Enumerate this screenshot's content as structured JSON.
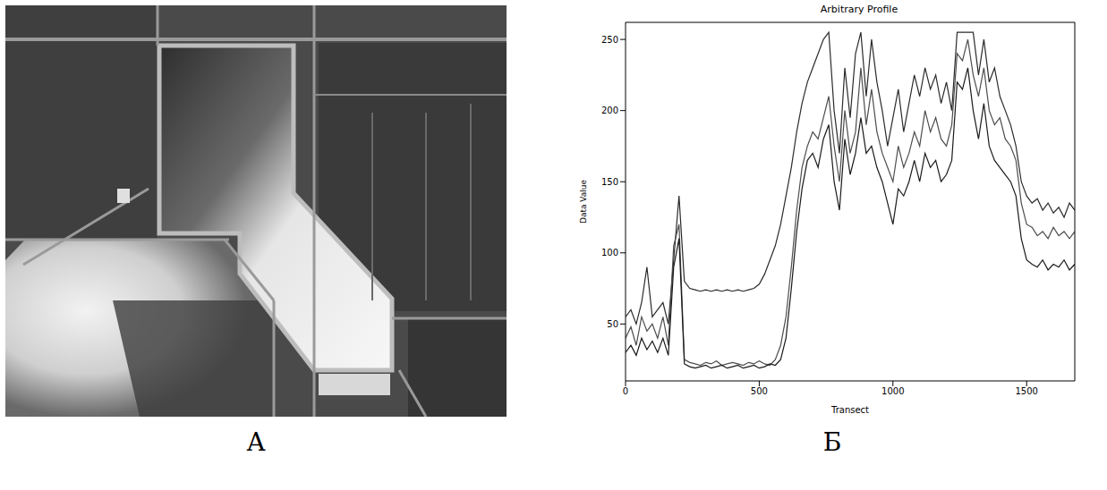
{
  "panel_labels": [
    "А",
    "Б"
  ],
  "chart_data": {
    "type": "line",
    "title": "Arbitrary Profile",
    "x_label": "Transect",
    "y_label": "Data Value",
    "x": [
      0,
      20,
      40,
      60,
      80,
      100,
      120,
      140,
      160,
      180,
      200,
      220,
      240,
      260,
      280,
      300,
      320,
      340,
      360,
      380,
      400,
      420,
      440,
      460,
      480,
      500,
      520,
      540,
      560,
      580,
      600,
      620,
      640,
      660,
      680,
      700,
      720,
      740,
      760,
      780,
      800,
      820,
      840,
      860,
      880,
      900,
      920,
      940,
      960,
      980,
      1000,
      1020,
      1040,
      1060,
      1080,
      1100,
      1120,
      1140,
      1160,
      1180,
      1200,
      1220,
      1240,
      1260,
      1280,
      1300,
      1320,
      1340,
      1360,
      1380,
      1400,
      1420,
      1440,
      1460,
      1480,
      1500,
      1520,
      1540,
      1560,
      1580,
      1600,
      1620,
      1640,
      1660,
      1680
    ],
    "series": [
      {
        "color": "#2b2b2b",
        "values": [
          55,
          60,
          50,
          65,
          90,
          55,
          60,
          65,
          50,
          95,
          140,
          80,
          75,
          74,
          73,
          74,
          73,
          74,
          73,
          74,
          73,
          74,
          73,
          74,
          75,
          78,
          85,
          95,
          105,
          120,
          140,
          160,
          185,
          205,
          220,
          230,
          240,
          250,
          255,
          200,
          170,
          230,
          195,
          240,
          255,
          210,
          250,
          220,
          200,
          175,
          195,
          215,
          185,
          205,
          225,
          210,
          230,
          215,
          225,
          205,
          220,
          200,
          255,
          255,
          255,
          255,
          225,
          250,
          220,
          230,
          210,
          200,
          190,
          175,
          150,
          140,
          135,
          138,
          130,
          135,
          128,
          132,
          125,
          135,
          130
        ]
      },
      {
        "color": "#4d4d4d",
        "values": [
          40,
          48,
          35,
          55,
          45,
          50,
          40,
          55,
          35,
          105,
          120,
          25,
          23,
          22,
          21,
          23,
          22,
          24,
          21,
          22,
          23,
          22,
          21,
          23,
          22,
          24,
          22,
          21,
          25,
          35,
          55,
          90,
          130,
          160,
          175,
          185,
          180,
          195,
          210,
          175,
          150,
          200,
          170,
          185,
          230,
          190,
          215,
          185,
          170,
          160,
          150,
          175,
          160,
          170,
          185,
          175,
          200,
          185,
          195,
          180,
          175,
          190,
          240,
          235,
          250,
          225,
          210,
          230,
          200,
          190,
          195,
          180,
          175,
          165,
          135,
          120,
          118,
          112,
          115,
          110,
          118,
          112,
          115,
          110,
          115
        ]
      },
      {
        "color": "#1a1a1a",
        "values": [
          30,
          35,
          28,
          40,
          32,
          38,
          30,
          40,
          28,
          90,
          110,
          22,
          20,
          19,
          20,
          21,
          19,
          20,
          21,
          19,
          20,
          21,
          19,
          20,
          21,
          19,
          20,
          22,
          21,
          25,
          40,
          75,
          115,
          145,
          165,
          170,
          160,
          180,
          190,
          150,
          130,
          180,
          155,
          170,
          195,
          170,
          175,
          160,
          150,
          135,
          120,
          145,
          140,
          150,
          165,
          150,
          170,
          160,
          165,
          150,
          155,
          165,
          220,
          215,
          230,
          200,
          180,
          205,
          175,
          165,
          160,
          155,
          150,
          140,
          110,
          95,
          92,
          90,
          95,
          88,
          92,
          90,
          95,
          88,
          92
        ]
      }
    ],
    "xlim": [
      0,
      1680
    ],
    "xticks": [
      0,
      500,
      1000,
      1500
    ],
    "ylim": [
      10,
      262
    ],
    "yticks": [
      50,
      100,
      150,
      200,
      250
    ],
    "grid": false
  }
}
